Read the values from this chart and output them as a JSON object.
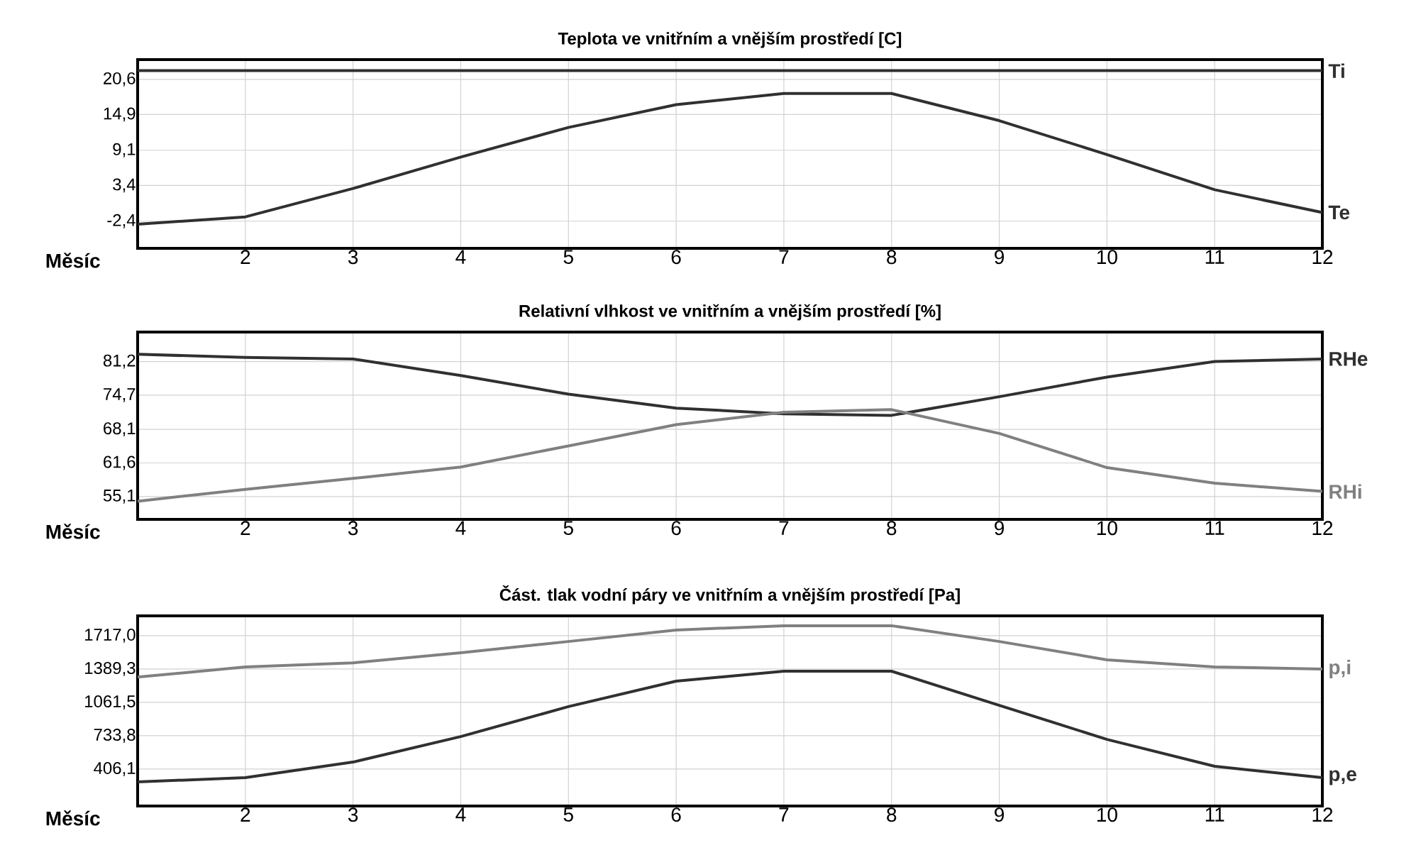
{
  "chart_data": [
    {
      "type": "line",
      "title": "Teplota ve vnitřním a vnějším prostředí [C]",
      "xlabel": "Měsíc",
      "x": [
        1,
        2,
        3,
        4,
        5,
        6,
        7,
        8,
        9,
        10,
        11,
        12
      ],
      "xlim": [
        1,
        12
      ],
      "xticks": [
        2,
        3,
        4,
        5,
        6,
        7,
        8,
        9,
        10,
        11,
        12
      ],
      "ylim": [
        -6.8,
        23.8
      ],
      "yticks": [
        {
          "value": -2.4,
          "label": "-2,4"
        },
        {
          "value": 3.4,
          "label": "3,4"
        },
        {
          "value": 9.1,
          "label": "9,1"
        },
        {
          "value": 14.9,
          "label": "14,9"
        },
        {
          "value": 20.6,
          "label": "20,6"
        }
      ],
      "grid": true,
      "marker": "none",
      "line_style": "solid",
      "series": [
        {
          "name": "Ti",
          "color": "#303030",
          "values": [
            22.0,
            22.0,
            22.0,
            22.0,
            22.0,
            22.0,
            22.0,
            22.0,
            22.0,
            22.0,
            22.0,
            22.0
          ]
        },
        {
          "name": "Te",
          "color": "#303030",
          "values": [
            -2.9,
            -1.7,
            2.9,
            8.0,
            12.8,
            16.5,
            18.3,
            18.3,
            13.9,
            8.4,
            2.7,
            -1.0
          ]
        }
      ]
    },
    {
      "type": "line",
      "title": "Relativní vlhkost ve vnitřním a vnějším prostředí [%]",
      "xlabel": "Měsíc",
      "x": [
        1,
        2,
        3,
        4,
        5,
        6,
        7,
        8,
        9,
        10,
        11,
        12
      ],
      "xlim": [
        1,
        12
      ],
      "xticks": [
        2,
        3,
        4,
        5,
        6,
        7,
        8,
        9,
        10,
        11,
        12
      ],
      "ylim": [
        50.7,
        86.9
      ],
      "yticks": [
        {
          "value": 55.1,
          "label": "55,1"
        },
        {
          "value": 61.6,
          "label": "61,6"
        },
        {
          "value": 68.1,
          "label": "68,1"
        },
        {
          "value": 74.7,
          "label": "74,7"
        },
        {
          "value": 81.2,
          "label": "81,2"
        }
      ],
      "grid": true,
      "marker": "none",
      "line_style": "solid",
      "series": [
        {
          "name": "RHe",
          "color": "#303030",
          "values": [
            82.6,
            82.0,
            81.7,
            78.5,
            74.9,
            72.2,
            71.1,
            70.8,
            74.4,
            78.2,
            81.2,
            81.7
          ]
        },
        {
          "name": "RHi",
          "color": "#808080",
          "values": [
            54.2,
            56.5,
            58.6,
            60.8,
            64.9,
            69.0,
            71.4,
            71.9,
            67.3,
            60.7,
            57.7,
            56.1
          ]
        }
      ]
    },
    {
      "type": "line",
      "title": "Část. tlak vodní páry ve vnitřním a vnějším prostředí [Pa]",
      "xlabel": "Měsíc",
      "x": [
        1,
        2,
        3,
        4,
        5,
        6,
        7,
        8,
        9,
        10,
        11,
        12
      ],
      "xlim": [
        1,
        12
      ],
      "xticks": [
        2,
        3,
        4,
        5,
        6,
        7,
        8,
        9,
        10,
        11,
        12
      ],
      "ylim": [
        43.6,
        1912
      ],
      "yticks": [
        {
          "value": 406.1,
          "label": "406,1"
        },
        {
          "value": 733.8,
          "label": "733,8"
        },
        {
          "value": 1061.5,
          "label": "1061,5"
        },
        {
          "value": 1389.3,
          "label": "1389,3"
        },
        {
          "value": 1717.0,
          "label": "1717,0"
        }
      ],
      "grid": true,
      "marker": "none",
      "line_style": "solid",
      "series": [
        {
          "name": "p,i",
          "color": "#808080",
          "values": [
            1310,
            1410,
            1450,
            1550,
            1660,
            1773,
            1815,
            1815,
            1660,
            1480,
            1410,
            1389
          ]
        },
        {
          "name": "p,e",
          "color": "#303030",
          "values": [
            280,
            322,
            475,
            726,
            1020,
            1270,
            1368,
            1368,
            1033,
            698,
            434,
            322
          ]
        }
      ]
    }
  ]
}
